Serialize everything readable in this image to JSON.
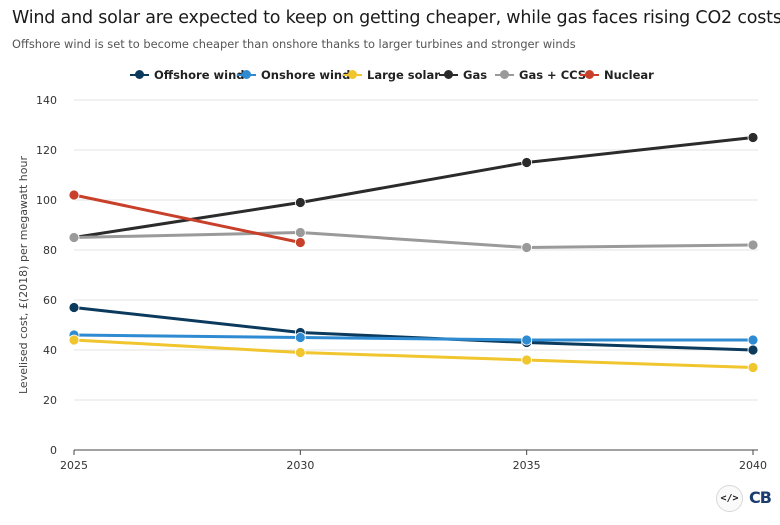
{
  "chart_data": {
    "type": "line",
    "title": "Wind and solar are expected to keep on getting cheaper, while gas faces rising CO2 costs",
    "subtitle": "Offshore wind is set to become cheaper than onshore thanks to larger turbines and stronger winds",
    "xlabel": "",
    "ylabel": "Levelised cost, £(2018) per megawatt hour",
    "x": [
      2025,
      2030,
      2035,
      2040
    ],
    "xlim": [
      2025,
      2040
    ],
    "ylim": [
      0,
      140
    ],
    "yticks": [
      0,
      20,
      40,
      60,
      80,
      100,
      120,
      140
    ],
    "grid": true,
    "legend": "top",
    "series": [
      {
        "name": "Offshore wind",
        "color": "#0b3a5d",
        "x": [
          2025,
          2030,
          2035,
          2040
        ],
        "values": [
          57,
          47,
          43,
          40
        ]
      },
      {
        "name": "Onshore wind",
        "color": "#2e8bd1",
        "x": [
          2025,
          2030,
          2035,
          2040
        ],
        "values": [
          46,
          45,
          44,
          44
        ]
      },
      {
        "name": "Large solar",
        "color": "#f0c52e",
        "x": [
          2025,
          2030,
          2035,
          2040
        ],
        "values": [
          44,
          39,
          36,
          33
        ]
      },
      {
        "name": "Gas",
        "color": "#2b2b2b",
        "x": [
          2025,
          2030,
          2035,
          2040
        ],
        "values": [
          85,
          99,
          115,
          125
        ]
      },
      {
        "name": "Gas + CCS",
        "color": "#9a9a9a",
        "x": [
          2025,
          2030,
          2035,
          2040
        ],
        "values": [
          85,
          87,
          81,
          82
        ]
      },
      {
        "name": "Nuclear",
        "color": "#c8402a",
        "x": [
          2025,
          2030
        ],
        "values": [
          102,
          83
        ]
      }
    ]
  },
  "footer": {
    "embed_icon_text": "</>",
    "logo_text": "CB"
  }
}
